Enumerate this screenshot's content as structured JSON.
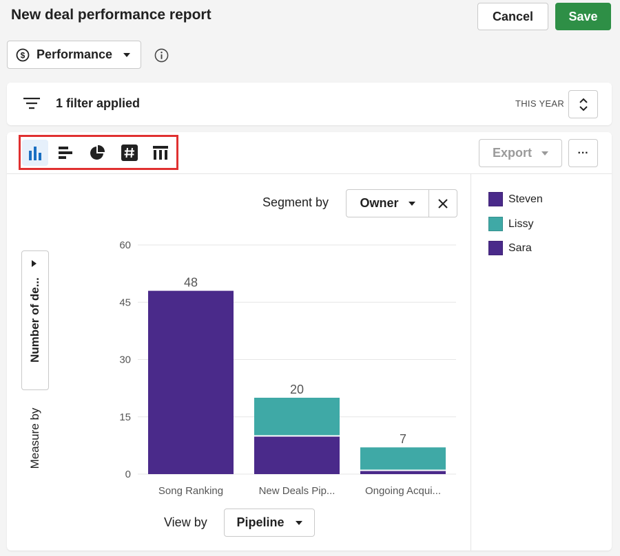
{
  "header": {
    "title": "New deal performance report",
    "cancel_label": "Cancel",
    "save_label": "Save"
  },
  "report_type": {
    "selected": "Performance"
  },
  "filters": {
    "summary": "1 filter applied",
    "period": "THIS YEAR"
  },
  "toolbar": {
    "chart_types": [
      "column-chart-icon",
      "bar-chart-icon",
      "pie-chart-icon",
      "scorecard-icon",
      "table-icon"
    ],
    "active_chart_type": "column-chart-icon",
    "export_label": "Export",
    "more_label": "···"
  },
  "segment": {
    "label": "Segment by",
    "value": "Owner"
  },
  "measure": {
    "label": "Measure by",
    "value": "Number of de..."
  },
  "view": {
    "label": "View by",
    "value": "Pipeline"
  },
  "legend": [
    {
      "name": "Steven",
      "color": "#4a2a8a"
    },
    {
      "name": "Lissy",
      "color": "#3fa9a6"
    },
    {
      "name": "Sara",
      "color": "#4a2a8a"
    }
  ],
  "colors": {
    "save": "#2e8f46",
    "highlight": "#e03030",
    "active_icon": "#1a6fc2"
  },
  "chart_data": {
    "type": "bar",
    "stacked": true,
    "categories": [
      "Song Ranking",
      "New Deals Pip...",
      "Ongoing Acqui..."
    ],
    "series": [
      {
        "name": "Steven",
        "values": [
          48,
          10,
          1
        ]
      },
      {
        "name": "Lissy",
        "values": [
          0,
          10,
          6
        ]
      },
      {
        "name": "Sara",
        "values": [
          0,
          0,
          0
        ]
      }
    ],
    "totals": [
      48,
      20,
      7
    ],
    "ylim": [
      0,
      60
    ],
    "yticks": [
      0,
      15,
      30,
      45,
      60
    ],
    "grid": true
  }
}
